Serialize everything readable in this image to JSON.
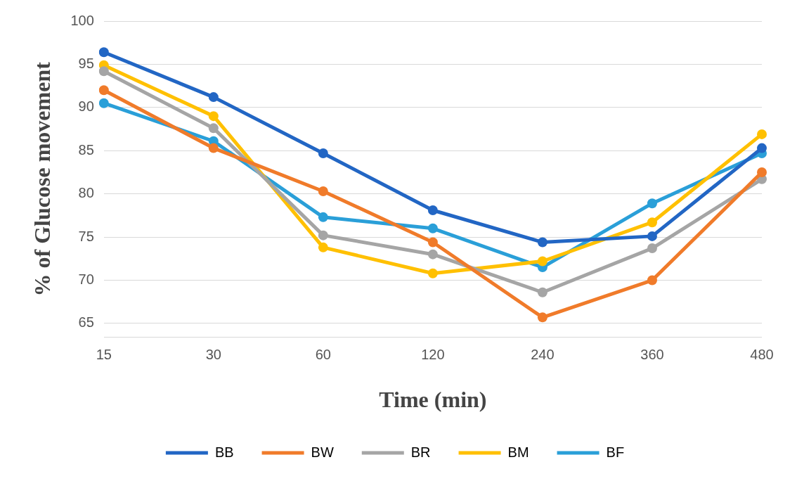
{
  "chart_data": {
    "type": "line",
    "xlabel": "Time (min)",
    "ylabel": "% of Glucose movement",
    "categories": [
      "15",
      "30",
      "60",
      "120",
      "240",
      "360",
      "480"
    ],
    "series": [
      {
        "name": "BB",
        "color": "#2266c4",
        "values": [
          96.4,
          91.2,
          84.7,
          78.1,
          74.4,
          75.1,
          85.3
        ]
      },
      {
        "name": "BW",
        "color": "#f07b2a",
        "values": [
          92.0,
          85.3,
          80.3,
          74.4,
          65.7,
          70.0,
          82.5
        ]
      },
      {
        "name": "BR",
        "color": "#a5a5a5",
        "values": [
          94.2,
          87.6,
          75.2,
          73.0,
          68.6,
          73.7,
          81.7
        ]
      },
      {
        "name": "BM",
        "color": "#ffc000",
        "values": [
          94.9,
          89.0,
          73.8,
          70.8,
          72.2,
          76.7,
          86.9
        ]
      },
      {
        "name": "BF",
        "color": "#2a9fd8",
        "values": [
          90.5,
          86.1,
          77.3,
          76.0,
          71.5,
          78.9,
          84.7
        ]
      }
    ],
    "ylim": [
      63.4,
      100
    ],
    "yticks": [
      {
        "value": 63.4,
        "label": null
      },
      65,
      70,
      75,
      80,
      85,
      90,
      95,
      100
    ],
    "grid": "y",
    "legend": "bottom",
    "marker": "circle",
    "line_style": "solid"
  }
}
